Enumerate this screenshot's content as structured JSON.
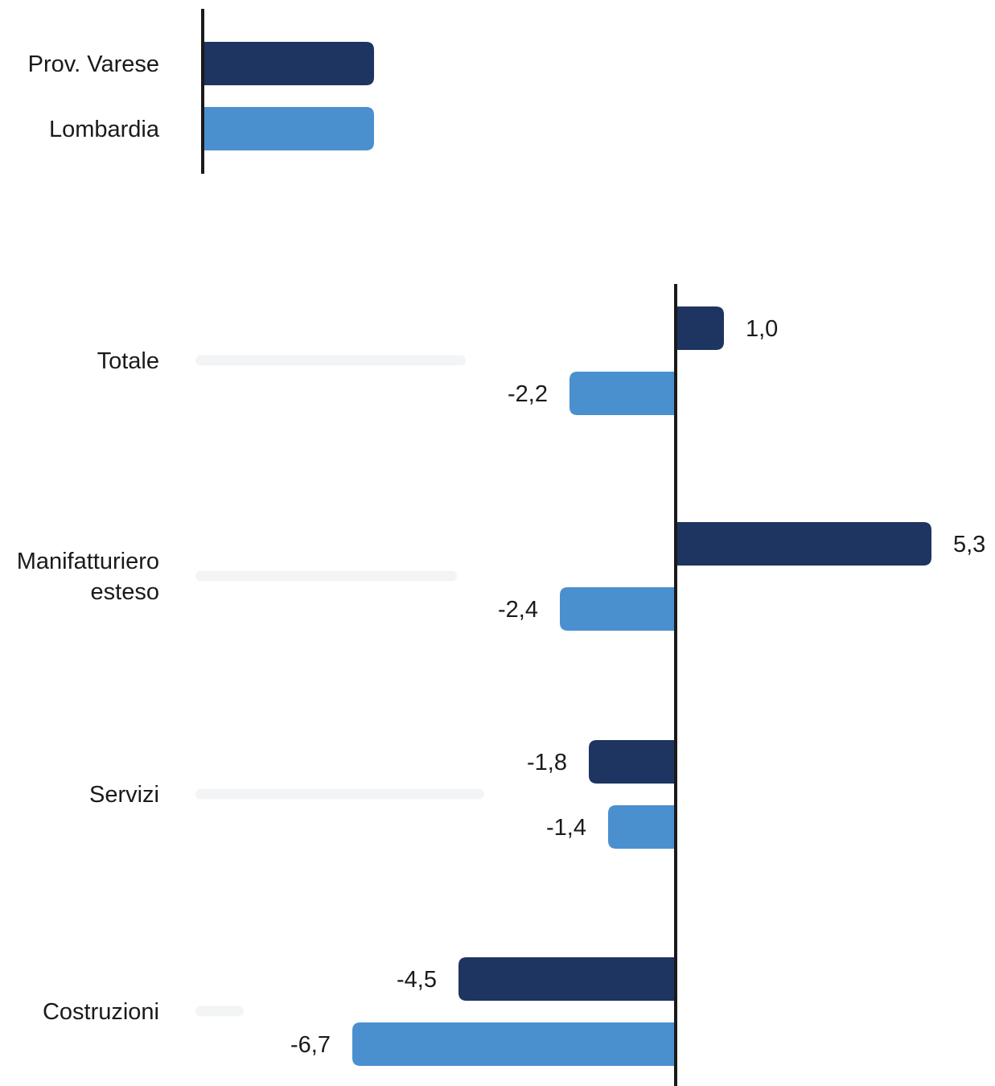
{
  "chart_data": {
    "type": "bar",
    "orientation": "horizontal",
    "categories": [
      [
        "Totale"
      ],
      [
        "Manifatturiero",
        "esteso"
      ],
      [
        "Servizi"
      ],
      [
        "Costruzioni"
      ]
    ],
    "series": [
      {
        "name": "Prov. Varese",
        "color": "#1e3461",
        "values": [
          1.0,
          5.3,
          -1.8,
          -4.5
        ],
        "labels": [
          "1,0",
          "5,3",
          "-1,8",
          "-4,5"
        ]
      },
      {
        "name": "Lombardia",
        "color": "#4a90cf",
        "values": [
          -2.2,
          -2.4,
          -1.4,
          -6.7
        ],
        "labels": [
          "-2,2",
          "-2,4",
          "-1,4",
          "-6,7"
        ]
      }
    ],
    "placeholder_bar_color": "#f3f4f6",
    "axis_color": "#1a1a1a",
    "legend_position": "top-left"
  }
}
